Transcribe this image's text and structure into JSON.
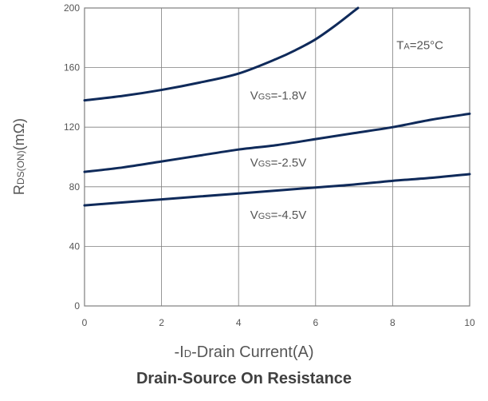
{
  "chart_data": {
    "type": "line",
    "title": "Drain-Source On Resistance",
    "xlabel": {
      "prefix": "-I",
      "sub": "D",
      "rest": "-Drain Current(A)"
    },
    "ylabel": {
      "main": "R",
      "sub": "DS(ON)",
      "rest": "(mΩ)"
    },
    "xlim": [
      0,
      10
    ],
    "ylim": [
      0,
      200
    ],
    "xticks": [
      0,
      2,
      4,
      6,
      8,
      10
    ],
    "yticks": [
      0,
      40,
      80,
      120,
      160,
      200
    ],
    "grid": true,
    "line_color": "#0f2a5a",
    "grid_color": "#7f7f7f",
    "axis_color": "#7f7f7f",
    "series": [
      {
        "name": "VGS=-1.8V",
        "x": [
          0,
          1,
          2,
          3,
          4,
          5,
          5.5,
          6,
          6.5,
          7,
          7.1
        ],
        "y": [
          138,
          141,
          145,
          150,
          156,
          166,
          172,
          179,
          188,
          198,
          200
        ]
      },
      {
        "name": "VGS=-2.5V",
        "x": [
          0,
          1,
          2,
          3,
          4,
          5,
          6,
          7,
          8,
          9,
          10
        ],
        "y": [
          90,
          93,
          97,
          101,
          105,
          108,
          112,
          116,
          120,
          125,
          129
        ]
      },
      {
        "name": "VGS=-4.5V",
        "x": [
          0,
          1,
          2,
          3,
          4,
          5,
          6,
          7,
          8,
          9,
          10
        ],
        "y": [
          67.5,
          69.5,
          71.5,
          73.5,
          75.5,
          77.5,
          79.5,
          81.5,
          84,
          86,
          88.5
        ]
      }
    ],
    "annotations": [
      {
        "main": "V",
        "sub": "GS",
        "rest": "=-1.8V",
        "x": 4.3,
        "y": 138.5
      },
      {
        "main": "V",
        "sub": "GS",
        "rest": "=-2.5V",
        "x": 4.3,
        "y": 93.5
      },
      {
        "main": "V",
        "sub": "GS",
        "rest": "=-4.5V",
        "x": 4.3,
        "y": 58.5
      },
      {
        "main": "T",
        "sub": "A",
        "rest": "=25°C",
        "x": 8.1,
        "y": 172.5
      }
    ]
  }
}
